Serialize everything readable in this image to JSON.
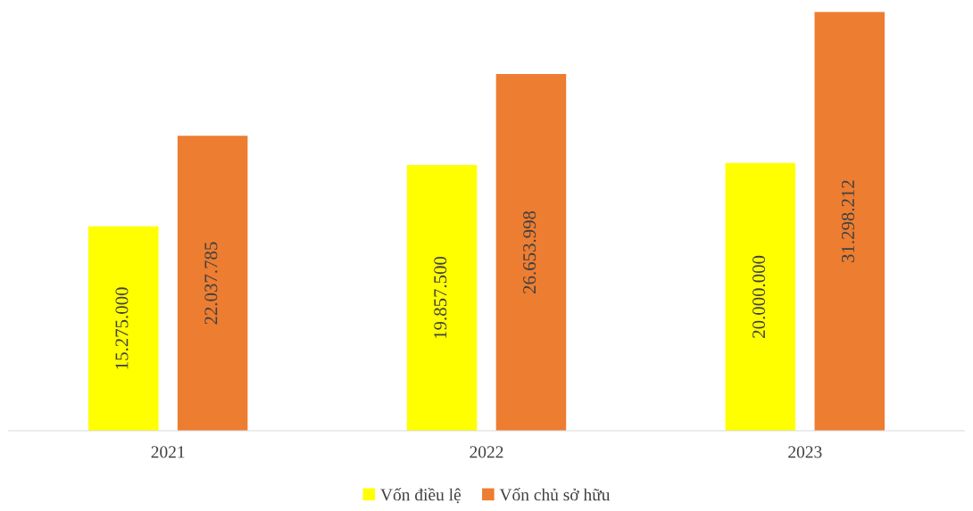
{
  "chart_data": {
    "type": "bar",
    "categories": [
      "2021",
      "2022",
      "2023"
    ],
    "series": [
      {
        "name": "Vốn điều lệ",
        "color": "#ffff00",
        "values": [
          15275000,
          19857500,
          20000000
        ],
        "value_labels": [
          "15.275.000",
          "19.857.500",
          "20.000.000"
        ]
      },
      {
        "name": "Vốn chủ sở hữu",
        "color": "#ed7d31",
        "values": [
          22037785,
          26653998,
          31298212
        ],
        "value_labels": [
          "22.037.785",
          "26.653.998",
          "31.298.212"
        ]
      }
    ],
    "legend": "bottom",
    "grid": false,
    "tick_labels": "x"
  }
}
